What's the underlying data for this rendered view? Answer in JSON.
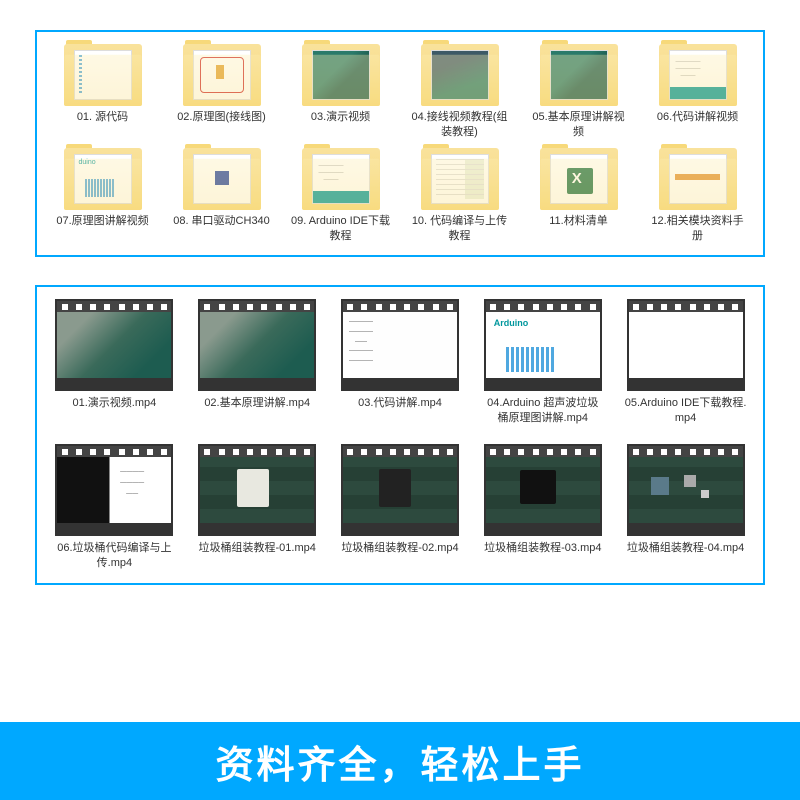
{
  "colors": {
    "border": "#00a8ff",
    "banner_bg": "#00a8ff",
    "banner_text": "#ffffff",
    "folder": "#f9df8a",
    "text": "#333333"
  },
  "panel1": {
    "folders": [
      {
        "name": "01. 源代码",
        "preview": "prev-code"
      },
      {
        "name": "02.原理图(接线图)",
        "preview": "prev-schematic"
      },
      {
        "name": "03.演示视频",
        "preview": "prev-pcb"
      },
      {
        "name": "04.接线视频教程(组装教程)",
        "preview": "prev-pcb2"
      },
      {
        "name": "05.基本原理讲解视频",
        "preview": "prev-pcb"
      },
      {
        "name": "06.代码讲解视频",
        "preview": "prev-ide"
      },
      {
        "name": "07.原理图讲解视频",
        "preview": "prev-wiring"
      },
      {
        "name": "08. 串口驱动CH340",
        "preview": "prev-chip"
      },
      {
        "name": "09. Arduino IDE下载教程",
        "preview": "prev-ide"
      },
      {
        "name": "10. 代码编译与上传教程",
        "preview": "prev-web"
      },
      {
        "name": "11.材料清单",
        "preview": "prev-excel"
      },
      {
        "name": "12.相关模块资料手册",
        "preview": "prev-doc"
      }
    ]
  },
  "panel2": {
    "row1": [
      {
        "name": "01.演示视频.mp4",
        "thumb": "vt-pcb"
      },
      {
        "name": "02.基本原理讲解.mp4",
        "thumb": "vt-pcb"
      },
      {
        "name": "03.代码讲解.mp4",
        "thumb": "vt-code"
      },
      {
        "name": "04.Arduino 超声波垃圾桶原理图讲解.mp4",
        "thumb": "vt-ard"
      },
      {
        "name": "05.Arduino IDE下载教程.mp4",
        "thumb": "vt-web"
      }
    ],
    "row2": [
      {
        "name": "06.垃圾桶代码编译与上传.mp4",
        "thumb": "vt-split"
      },
      {
        "name": "垃圾桶组装教程-01.mp4",
        "thumb": "vt-mat bin1"
      },
      {
        "name": "垃圾桶组装教程-02.mp4",
        "thumb": "vt-mat bin2"
      },
      {
        "name": "垃圾桶组装教程-03.mp4",
        "thumb": "vt-mat bin3"
      },
      {
        "name": "垃圾桶组装教程-04.mp4",
        "thumb": "vt-mat parts"
      }
    ]
  },
  "banner": "资料齐全，轻松上手"
}
